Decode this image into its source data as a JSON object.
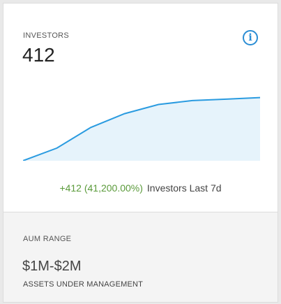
{
  "investors": {
    "label": "INVESTORS",
    "value": "412",
    "info_icon": "info-icon",
    "change": "+412 (41,200.00%)",
    "caption": "Investors Last 7d"
  },
  "chart_data": {
    "type": "area",
    "values": [
      0,
      55,
      145,
      205,
      245,
      262,
      268,
      275
    ],
    "ylim": [
      0,
      350
    ],
    "line_color": "#2a9be0",
    "fill_color": "#e6f3fb"
  },
  "aum": {
    "label": "AUM RANGE",
    "value": "$1M-$2M",
    "sub": "ASSETS UNDER MANAGEMENT"
  },
  "colors": {
    "accent": "#2a8dd4",
    "positive": "#5a9a3a"
  }
}
